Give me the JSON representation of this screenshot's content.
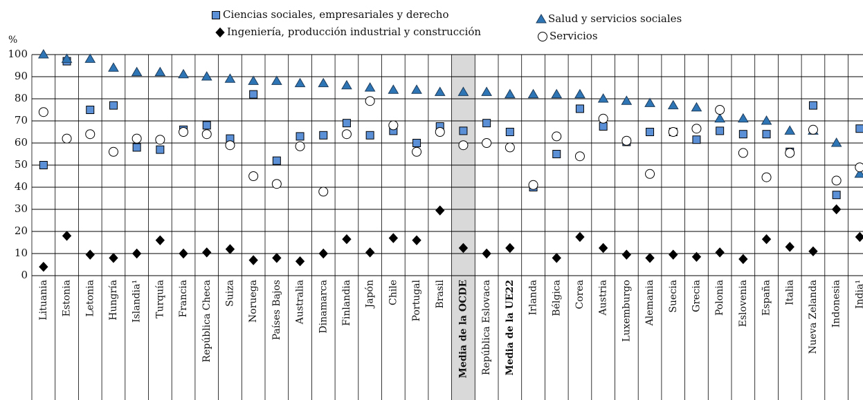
{
  "chart_data": {
    "type": "scatter",
    "ylabel": "%",
    "categories": [
      "Lituania",
      "Estonia",
      "Letonia",
      "Hungría",
      "Islandia¹",
      "Turquía",
      "Francia",
      "República Checa",
      "Suiza",
      "Noruega",
      "Países Bajos",
      "Australia",
      "Dinamarca",
      "Finlandia",
      "Japón",
      "Chile",
      "Portugal",
      "Brasil",
      "Media de la OCDE",
      "República Eslovaca",
      "Media de la UE22",
      "Irlanda",
      "Bélgica",
      "Corea",
      "Austria",
      "Luxemburgo",
      "Alemania",
      "Suecia",
      "Grecia",
      "Polonia",
      "Eslovenia",
      "España",
      "Italia",
      "Nueva Zelanda",
      "Indonesia",
      "India¹"
    ],
    "highlight_categories": [
      "Media de la OCDE"
    ],
    "bold_categories": [
      "Media de la OCDE",
      "Media de la UE22"
    ],
    "series": [
      {
        "name": "Ciencias sociales, empresariales y derecho",
        "marker": "square",
        "color": "#5b8fd6",
        "values": [
          50,
          97,
          75,
          77,
          58,
          57,
          66,
          68,
          62,
          82,
          52,
          63,
          63.5,
          69,
          63.5,
          65.5,
          60,
          67.5,
          65.5,
          69,
          65,
          40,
          55,
          75.5,
          67.5,
          60.5,
          65,
          65,
          61.5,
          65.5,
          64,
          64,
          56,
          77,
          36.5,
          66.5
        ]
      },
      {
        "name": "Salud y servicios sociales",
        "marker": "triangle",
        "color": "#2e75b6",
        "values": [
          100,
          98,
          98,
          94,
          92,
          92,
          91,
          90,
          89,
          88,
          88,
          87,
          87,
          86,
          85,
          84,
          84,
          83,
          83,
          83,
          82,
          82,
          82,
          82,
          80,
          79,
          78,
          77,
          76,
          71,
          71,
          70,
          65.5,
          65.5,
          60,
          46
        ]
      },
      {
        "name": "Ingeniería, producción industrial y construcción",
        "marker": "diamond",
        "color": "#000000",
        "values": [
          4,
          18,
          9.5,
          8,
          10,
          16,
          10,
          10.5,
          12,
          7,
          8,
          6.5,
          10,
          16.5,
          10.5,
          17,
          16,
          29.5,
          12.5,
          10,
          12.5,
          null,
          8,
          17.5,
          12.5,
          9.5,
          8,
          9.5,
          8.5,
          10.5,
          7.5,
          16.5,
          13,
          11,
          30,
          17.5
        ]
      },
      {
        "name": "Servicios",
        "marker": "circle",
        "color": "#ffffff",
        "values": [
          74,
          62,
          64,
          56,
          62,
          61.5,
          65,
          64,
          59,
          45,
          41.5,
          58.5,
          38,
          64,
          79,
          68,
          56,
          65,
          59,
          60,
          58,
          41,
          63,
          54,
          71,
          61,
          46,
          65,
          66.5,
          75,
          55.5,
          44.5,
          55.5,
          66,
          43,
          49
        ]
      }
    ],
    "ylim": [
      0,
      100
    ],
    "yticks": [
      0,
      10,
      20,
      30,
      40,
      50,
      60,
      70,
      80,
      90,
      100
    ],
    "grid": true
  }
}
